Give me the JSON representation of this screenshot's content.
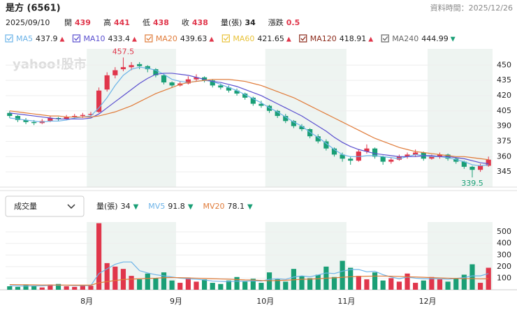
{
  "header": {
    "title": "是方 (6561)",
    "data_time": "資料時間：2025/12/26",
    "date": "2025/09/10",
    "quote": [
      {
        "label": "開",
        "value": 439,
        "color": "#e0364b"
      },
      {
        "label": "高",
        "value": 441,
        "color": "#e0364b"
      },
      {
        "label": "低",
        "value": 438,
        "color": "#e0364b"
      },
      {
        "label": "收",
        "value": 438,
        "color": "#e0364b"
      },
      {
        "label": "量(張)",
        "value": 34,
        "color": "#222222"
      },
      {
        "label": "漲跌",
        "value": 0.5,
        "color": "#e0364b"
      }
    ],
    "watermark": "yahoo!股市",
    "dropdown": "成交量"
  },
  "chart_data": [
    {
      "type": "candlestick",
      "up_color": "#e0364b",
      "down_color": "#1a9f76",
      "categories": [
        null,
        null,
        null,
        null,
        null,
        null,
        null,
        null,
        null,
        null,
        "8月",
        null,
        null,
        null,
        null,
        null,
        null,
        null,
        null,
        null,
        null,
        "9月",
        null,
        null,
        null,
        null,
        null,
        null,
        null,
        null,
        null,
        null,
        "10月",
        null,
        null,
        null,
        null,
        null,
        null,
        null,
        null,
        null,
        "11月",
        null,
        null,
        null,
        null,
        null,
        null,
        null,
        null,
        null,
        "12月",
        null,
        null,
        null,
        null,
        null,
        null,
        null
      ],
      "candles": [
        [
          403,
          405,
          398,
          400
        ],
        [
          400,
          401,
          394,
          396
        ],
        [
          396,
          398,
          392,
          394
        ],
        [
          394,
          396,
          391,
          393
        ],
        [
          393,
          397,
          392,
          395
        ],
        [
          395,
          400,
          394,
          398
        ],
        [
          398,
          399,
          395,
          397
        ],
        [
          397,
          401,
          396,
          399
        ],
        [
          399,
          402,
          397,
          400
        ],
        [
          400,
          403,
          398,
          401
        ],
        [
          401,
          404,
          399,
          402
        ],
        [
          404,
          428,
          403,
          425
        ],
        [
          426,
          443,
          424,
          440
        ],
        [
          440,
          448,
          437,
          445
        ],
        [
          446,
          457.5,
          444,
          448
        ],
        [
          448,
          453,
          445,
          450
        ],
        [
          451,
          453,
          446,
          449
        ],
        [
          449,
          450,
          443,
          446
        ],
        [
          446,
          447,
          438,
          440
        ],
        [
          440,
          441,
          431,
          433
        ],
        [
          433,
          434,
          428,
          430
        ],
        [
          430,
          434,
          429,
          432
        ],
        [
          432,
          439,
          431,
          436
        ],
        [
          436,
          441,
          434,
          438
        ],
        [
          438,
          439,
          433,
          435
        ],
        [
          435,
          436,
          428,
          430
        ],
        [
          430,
          432,
          426,
          428
        ],
        [
          428,
          430,
          423,
          425
        ],
        [
          425,
          427,
          420,
          422
        ],
        [
          422,
          423,
          416,
          418
        ],
        [
          418,
          419,
          410,
          412
        ],
        [
          412,
          415,
          408,
          410
        ],
        [
          410,
          411,
          403,
          405
        ],
        [
          405,
          406,
          398,
          400
        ],
        [
          400,
          402,
          393,
          395
        ],
        [
          395,
          396,
          388,
          390
        ],
        [
          390,
          392,
          385,
          387
        ],
        [
          387,
          388,
          378,
          380
        ],
        [
          380,
          382,
          373,
          375
        ],
        [
          375,
          377,
          366,
          368
        ],
        [
          368,
          369,
          360,
          362
        ],
        [
          362,
          364,
          355,
          358
        ],
        [
          358,
          360,
          352,
          356
        ],
        [
          356,
          367,
          355,
          365
        ],
        [
          365,
          372,
          363,
          368
        ],
        [
          368,
          369,
          358,
          360
        ],
        [
          360,
          361,
          352,
          355
        ],
        [
          355,
          359,
          353,
          357
        ],
        [
          357,
          362,
          356,
          360
        ],
        [
          360,
          364,
          358,
          362
        ],
        [
          362,
          367,
          360,
          364
        ],
        [
          364,
          365,
          356,
          358
        ],
        [
          358,
          362,
          357,
          360
        ],
        [
          360,
          364,
          358,
          362
        ],
        [
          362,
          363,
          356,
          358
        ],
        [
          358,
          359,
          353,
          355
        ],
        [
          355,
          356,
          348,
          350
        ],
        [
          350,
          351,
          339.5,
          347
        ],
        [
          347,
          353,
          345,
          351
        ],
        [
          351,
          360,
          350,
          357
        ]
      ],
      "high_label": 457.5,
      "low_label": 339.5,
      "series": [
        {
          "name": "MA5",
          "color": "#6cb3e8",
          "value": 437.9,
          "trend": "▲",
          "values": [
            398,
            397,
            396,
            395,
            394,
            395,
            395,
            396,
            398,
            399,
            400,
            408,
            418,
            430,
            440,
            446,
            448,
            447,
            445,
            441,
            436,
            434,
            433,
            434,
            435,
            434,
            431,
            428,
            425,
            421,
            417,
            413,
            408,
            404,
            399,
            394,
            390,
            384,
            379,
            373,
            367,
            362,
            360,
            360,
            361,
            361,
            360,
            359,
            358,
            360,
            362,
            361,
            360,
            360,
            359,
            357,
            355,
            352,
            351,
            352
          ]
        },
        {
          "name": "MA10",
          "color": "#5a4fcf",
          "value": 433.4,
          "trend": "▲",
          "values": [
            403,
            402,
            401,
            400,
            399,
            398,
            397,
            397,
            397,
            397,
            398,
            402,
            408,
            414,
            420,
            426,
            432,
            437,
            441,
            442,
            442,
            441,
            440,
            438,
            436,
            434,
            433,
            431,
            429,
            426,
            423,
            420,
            416,
            412,
            408,
            404,
            400,
            395,
            390,
            385,
            379,
            374,
            370,
            367,
            365,
            363,
            362,
            361,
            360,
            360,
            360,
            361,
            361,
            360,
            360,
            359,
            358,
            356,
            354,
            353
          ]
        },
        {
          "name": "MA20",
          "color": "#e07b39",
          "value": 439.63,
          "trend": "▲",
          "values": [
            405,
            404,
            403,
            402,
            401,
            400,
            400,
            399,
            399,
            399,
            399,
            400,
            402,
            404,
            407,
            410,
            414,
            418,
            422,
            425,
            428,
            431,
            433,
            434,
            435,
            436,
            436,
            436,
            435,
            434,
            432,
            430,
            427,
            424,
            421,
            418,
            414,
            410,
            406,
            402,
            398,
            394,
            390,
            386,
            382,
            378,
            375,
            372,
            369,
            367,
            365,
            364,
            363,
            362,
            361,
            360,
            360,
            359,
            358,
            357
          ]
        },
        {
          "name": "MA60",
          "color": "#e8c23a",
          "value": 421.65,
          "trend": "▲"
        },
        {
          "name": "MA120",
          "color": "#8b2a1a",
          "value": 418.91,
          "trend": "▲"
        },
        {
          "name": "MA240",
          "color": "#666666",
          "value": 444.99,
          "trend": "▼"
        }
      ],
      "ylim": [
        330,
        466
      ],
      "yticks": [
        345,
        360,
        375,
        390,
        405,
        420,
        435,
        450
      ],
      "grid": true
    },
    {
      "type": "volume",
      "ylim": [
        0,
        585
      ],
      "yticks": [
        100,
        200,
        300,
        400,
        500
      ],
      "legend": {
        "name": "量(張)",
        "value": 34,
        "trend": "▼"
      },
      "values": [
        30,
        25,
        40,
        35,
        20,
        45,
        50,
        30,
        25,
        40,
        35,
        575,
        230,
        200,
        180,
        120,
        90,
        140,
        100,
        150,
        80,
        60,
        100,
        70,
        90,
        60,
        50,
        80,
        110,
        70,
        95,
        60,
        150,
        90,
        70,
        180,
        120,
        100,
        130,
        200,
        110,
        250,
        190,
        120,
        90,
        150,
        80,
        100,
        70,
        140,
        60,
        80,
        110,
        90,
        70,
        100,
        130,
        220,
        60,
        190
      ],
      "series": [
        {
          "name": "MV5",
          "color": "#6cb3e8",
          "value": 91.8,
          "trend": "▼",
          "values": [
            35,
            33,
            32,
            33,
            34,
            38,
            40,
            38,
            36,
            37,
            36,
            140,
            180,
            220,
            240,
            240,
            165,
            145,
            130,
            120,
            110,
            100,
            95,
            90,
            85,
            75,
            72,
            70,
            75,
            74,
            77,
            75,
            90,
            95,
            90,
            110,
            120,
            112,
            128,
            145,
            140,
            160,
            175,
            175,
            155,
            160,
            130,
            110,
            95,
            110,
            100,
            95,
            95,
            96,
            90,
            98,
            105,
            120,
            120,
            140
          ]
        },
        {
          "name": "MV20",
          "color": "#e07b39",
          "value": 78.1,
          "trend": "▼",
          "values": [
            45,
            44,
            43,
            42,
            41,
            41,
            41,
            40,
            40,
            40,
            40,
            60,
            70,
            80,
            88,
            92,
            95,
            98,
            100,
            104,
            106,
            104,
            103,
            100,
            98,
            95,
            93,
            91,
            88,
            85,
            84,
            80,
            78,
            80,
            82,
            86,
            90,
            92,
            95,
            100,
            103,
            108,
            112,
            115,
            117,
            118,
            118,
            117,
            115,
            112,
            110,
            108,
            105,
            102,
            100,
            98,
            96,
            96,
            94,
            95
          ]
        }
      ]
    }
  ]
}
